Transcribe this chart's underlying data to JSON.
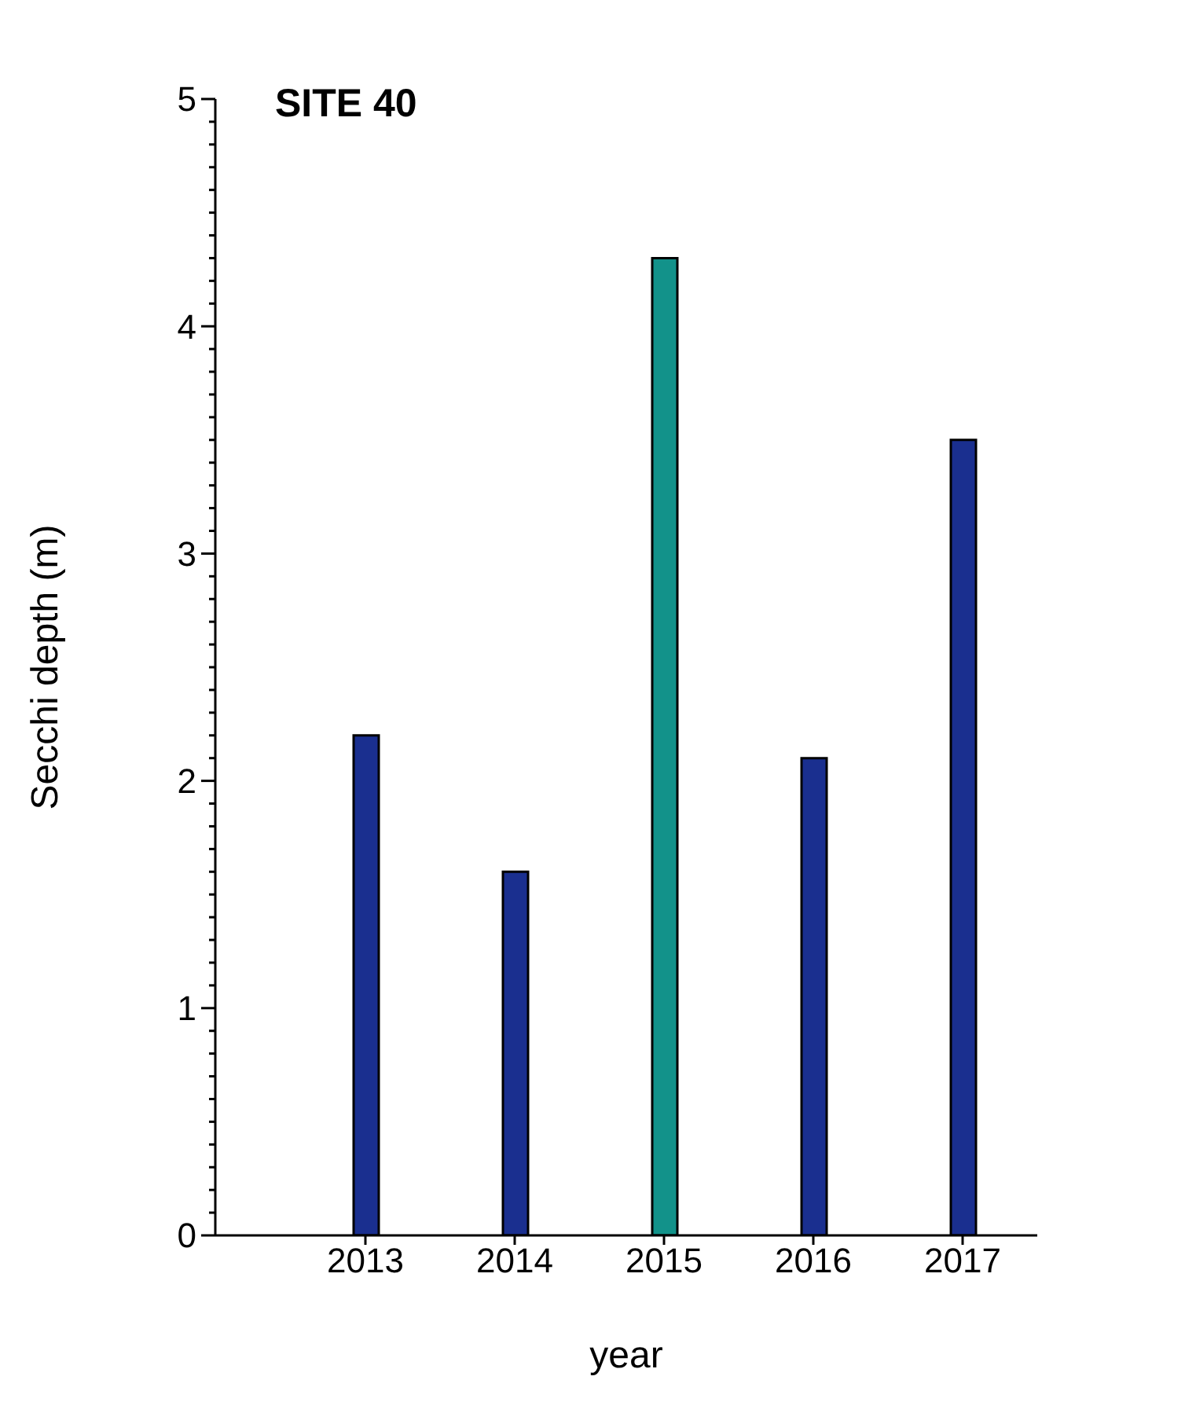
{
  "chart_data": {
    "type": "bar",
    "title": "SITE 40",
    "xlabel": "year",
    "ylabel": "Secchi depth (m)",
    "categories": [
      "2013",
      "2014",
      "2015",
      "2016",
      "2017"
    ],
    "values": [
      2.2,
      1.6,
      4.3,
      2.1,
      3.5
    ],
    "colors": [
      "#1a2f8f",
      "#1a2f8f",
      "#12928a",
      "#1a2f8f",
      "#1a2f8f"
    ],
    "ylim": [
      0,
      5
    ],
    "yticks": [
      0,
      {
        "value": 0.1,
        "label": null
      },
      {
        "value": 0.2,
        "label": null
      },
      {
        "value": 0.3,
        "label": null
      },
      {
        "value": 0.4,
        "label": null
      },
      {
        "value": 0.5,
        "label": null
      },
      {
        "value": 0.6,
        "label": null
      },
      {
        "value": 0.7,
        "label": null
      },
      {
        "value": 0.8,
        "label": null
      },
      {
        "value": 0.9,
        "label": null
      },
      1,
      {
        "value": 1.1,
        "label": null
      },
      {
        "value": 1.2,
        "label": null
      },
      {
        "value": 1.3,
        "label": null
      },
      {
        "value": 1.4,
        "label": null
      },
      {
        "value": 1.5,
        "label": null
      },
      {
        "value": 1.6,
        "label": null
      },
      {
        "value": 1.7,
        "label": null
      },
      {
        "value": 1.8,
        "label": null
      },
      {
        "value": 1.9,
        "label": null
      },
      2,
      {
        "value": 2.1,
        "label": null
      },
      {
        "value": 2.2,
        "label": null
      },
      {
        "value": 2.3,
        "label": null
      },
      {
        "value": 2.4,
        "label": null
      },
      {
        "value": 2.5,
        "label": null
      },
      {
        "value": 2.6,
        "label": null
      },
      {
        "value": 2.7,
        "label": null
      },
      {
        "value": 2.8,
        "label": null
      },
      {
        "value": 2.9,
        "label": null
      },
      3,
      {
        "value": 3.1,
        "label": null
      },
      {
        "value": 3.2,
        "label": null
      },
      {
        "value": 3.3,
        "label": null
      },
      {
        "value": 3.4,
        "label": null
      },
      {
        "value": 3.5,
        "label": null
      },
      {
        "value": 3.6,
        "label": null
      },
      {
        "value": 3.7,
        "label": null
      },
      {
        "value": 3.8,
        "label": null
      },
      {
        "value": 3.9,
        "label": null
      },
      4,
      {
        "value": 4.1,
        "label": null
      },
      {
        "value": 4.2,
        "label": null
      },
      {
        "value": 4.3,
        "label": null
      },
      {
        "value": 4.4,
        "label": null
      },
      {
        "value": 4.5,
        "label": null
      },
      {
        "value": 4.6,
        "label": null
      },
      {
        "value": 4.7,
        "label": null
      },
      {
        "value": 4.8,
        "label": null
      },
      {
        "value": 4.9,
        "label": null
      },
      5
    ]
  }
}
